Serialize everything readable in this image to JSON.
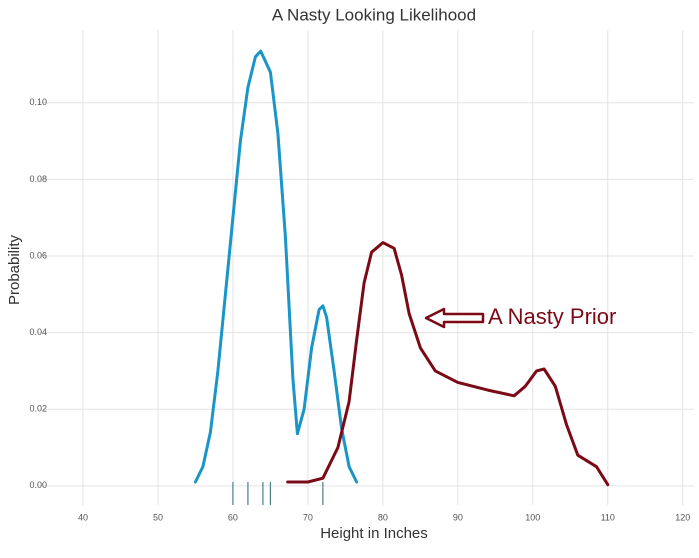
{
  "chart_data": {
    "type": "line",
    "title": "A Nasty Looking Likelihood",
    "x_label": "Height in Inches",
    "y_label": "Probability",
    "annotation": "A Nasty Prior",
    "xlim": [
      34,
      121.5
    ],
    "ylim": [
      -0.005,
      0.119
    ],
    "xticks": [
      40,
      50,
      60,
      70,
      80,
      90,
      100,
      110,
      120
    ],
    "yticks": [
      {
        "value": 0,
        "label": "0.00"
      },
      {
        "value": 0.02,
        "label": "0.02"
      },
      {
        "value": 0.04,
        "label": "0.04"
      },
      {
        "value": 0.06,
        "label": "0.06"
      },
      {
        "value": 0.08,
        "label": "0.08"
      },
      {
        "value": 0.1,
        "label": "0.10"
      }
    ],
    "grid": true,
    "rug": [
      60,
      62,
      64,
      65,
      72
    ],
    "rug_color": "#4a7f86",
    "series": [
      {
        "color": "#1a95c8",
        "x": [
          55,
          56,
          57,
          58,
          59,
          60,
          61,
          62,
          63,
          63.7,
          65,
          66,
          67,
          68,
          68.6,
          69.5,
          70.5,
          71.5,
          72,
          72.5,
          73.5,
          74.5,
          75.5,
          76.5
        ],
        "values": [
          0.001,
          0.005,
          0.014,
          0.03,
          0.05,
          0.07,
          0.09,
          0.104,
          0.112,
          0.1135,
          0.108,
          0.092,
          0.065,
          0.028,
          0.0136,
          0.02,
          0.036,
          0.046,
          0.047,
          0.044,
          0.03,
          0.015,
          0.005,
          0.001
        ]
      },
      {
        "color": "#7b0a17",
        "x": [
          67.3,
          70,
          72,
          74,
          75.5,
          76.5,
          77.5,
          78.5,
          80,
          81.5,
          82.5,
          83.5,
          85,
          87,
          90,
          94,
          97.5,
          99,
          100.5,
          101.5,
          103,
          104.5,
          106,
          108.5,
          110
        ],
        "values": [
          0.001,
          0.001,
          0.002,
          0.01,
          0.022,
          0.038,
          0.053,
          0.061,
          0.0635,
          0.062,
          0.055,
          0.045,
          0.036,
          0.03,
          0.027,
          0.025,
          0.0235,
          0.026,
          0.03,
          0.0305,
          0.026,
          0.016,
          0.008,
          0.005,
          0.0003
        ]
      }
    ]
  }
}
